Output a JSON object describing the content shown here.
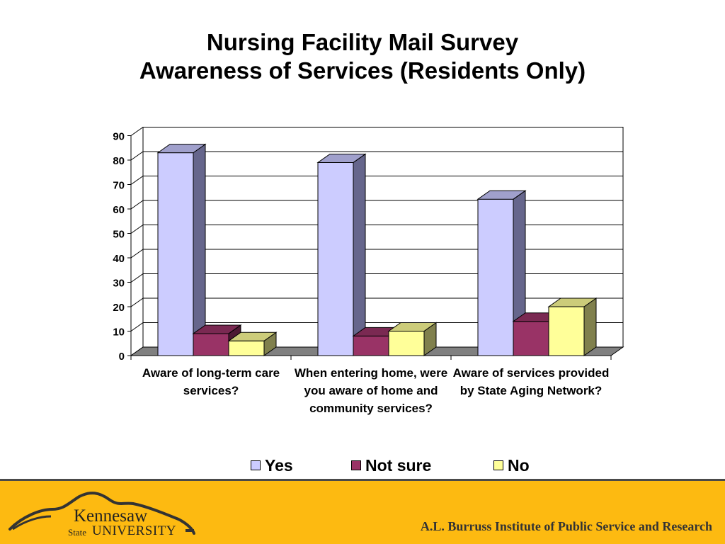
{
  "title": {
    "line1": "Nursing Facility Mail Survey",
    "line2": "Awareness of Services (Residents Only)"
  },
  "chart_data": {
    "type": "bar",
    "categories": [
      "Aware of long-term care services?",
      "When entering home, were you aware of home and community services?",
      "Aware of services provided by State Aging Network?"
    ],
    "series": [
      {
        "name": "Yes",
        "values": [
          83,
          79,
          64
        ],
        "color": "#CCCCFF",
        "side_color": "#66668C",
        "top_color": "#A0A0CC"
      },
      {
        "name": "Not sure",
        "values": [
          9,
          8,
          14
        ],
        "color": "#993366",
        "side_color": "#4D1A33",
        "top_color": "#7A2952"
      },
      {
        "name": "No",
        "values": [
          6,
          10,
          20
        ],
        "color": "#FFFF99",
        "side_color": "#80804D",
        "top_color": "#CCCC7A"
      }
    ],
    "ylim": [
      0,
      90
    ],
    "yticks": [
      "0",
      "10",
      "20",
      "30",
      "40",
      "50",
      "60",
      "70",
      "80",
      "90"
    ],
    "grid": true,
    "legend_position": "bottom",
    "xlabel": "",
    "ylabel": ""
  },
  "legend": {
    "items": [
      "Yes",
      "Not sure",
      "No"
    ]
  },
  "footer": {
    "institute": "A.L. Burruss Institute of Public Service and Research",
    "logo_name": "Kennesaw",
    "logo_state": "State",
    "logo_university": "UNIVERSITY"
  },
  "colors": {
    "footer_bg": "#FDBA11",
    "floor": "#808080"
  }
}
